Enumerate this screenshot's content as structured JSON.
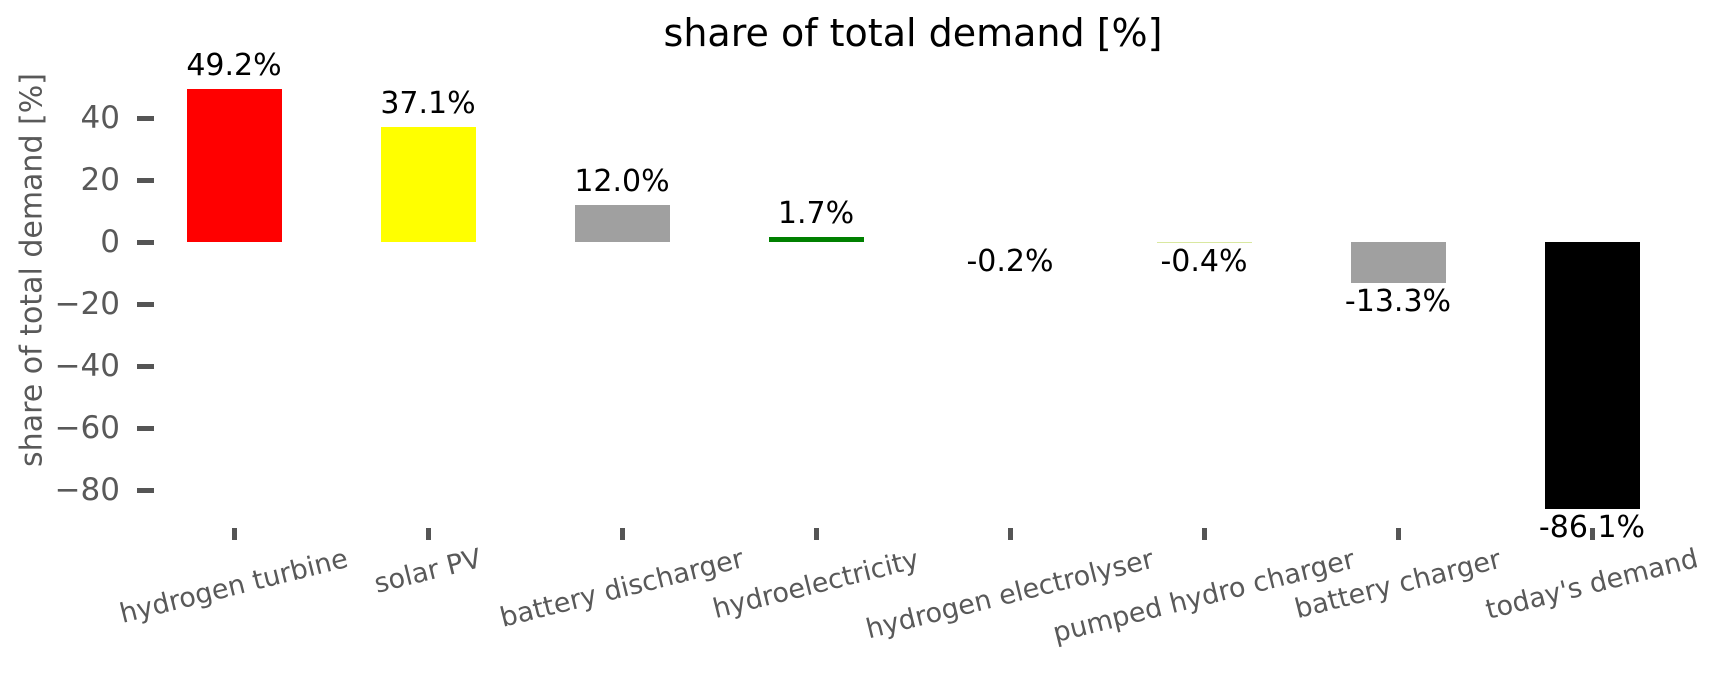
{
  "figure": {
    "background": "#ffffff"
  },
  "chart_data": {
    "type": "bar",
    "title": "share of total demand [%]",
    "xlabel": "",
    "ylabel": "share of total demand [%]",
    "categories": [
      "hydrogen turbine",
      "solar PV",
      "battery discharger",
      "hydroelectricity",
      "hydrogen electrolyser",
      "pumped hydro charger",
      "battery charger",
      "today's demand"
    ],
    "values": [
      49.2,
      37.1,
      12.0,
      1.7,
      -0.2,
      -0.4,
      -13.3,
      -86.1
    ],
    "value_labels": [
      "49.2%",
      "37.1%",
      "12.0%",
      "1.7%",
      "-0.2%",
      "-0.4%",
      "-13.3%",
      "-86.1%"
    ],
    "bar_colors": [
      "#ff0000",
      "#ffff00",
      "#a0a0a0",
      "#008000",
      "none",
      "#d9e8a0",
      "#a0a0a0",
      "#000000"
    ],
    "yticks": [
      40,
      20,
      0,
      -20,
      -40,
      -60,
      -80
    ],
    "ytick_labels": [
      "40",
      "20",
      "0",
      "−20",
      "−40",
      "−60",
      "−80"
    ],
    "ylim": [
      -90,
      58
    ],
    "grid": false,
    "legend": false,
    "spines": false
  },
  "colors": {
    "title": "#000000",
    "value_label": "#000000",
    "tick_label": "#595959",
    "axis_label": "#595959",
    "tick_mark": "#555555",
    "background": "#ffffff"
  }
}
